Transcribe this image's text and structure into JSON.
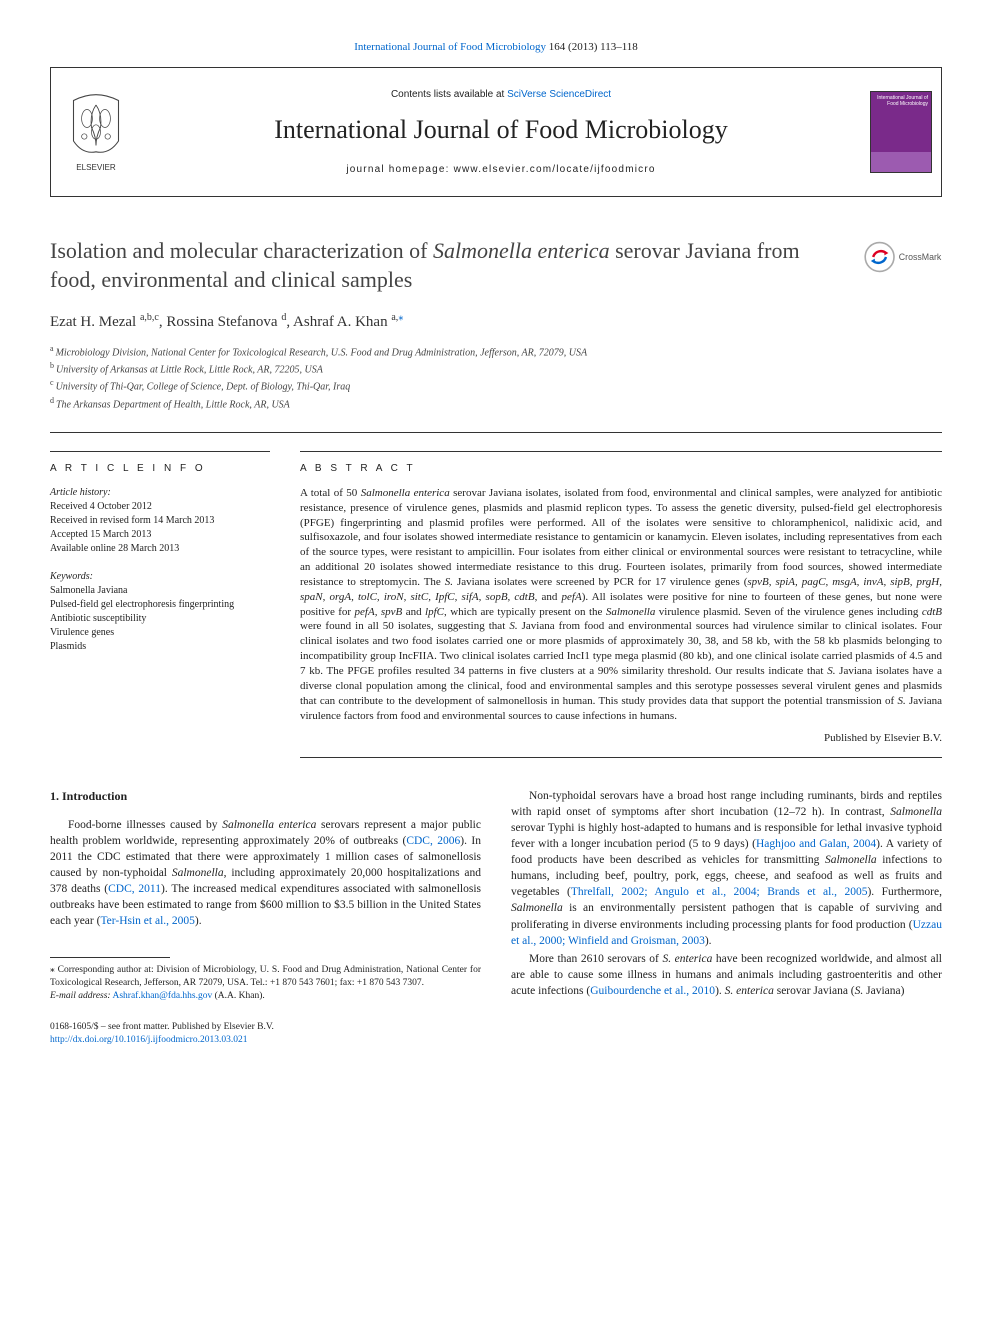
{
  "top_link": {
    "journal": "International Journal of Food Microbiology",
    "cite": "164 (2013) 113–118"
  },
  "header": {
    "contents_prefix": "Contents lists available at ",
    "contents_link": "SciVerse ScienceDirect",
    "journal_name": "International Journal of Food Microbiology",
    "homepage_prefix": "journal homepage: ",
    "homepage": "www.elsevier.com/locate/ijfoodmicro",
    "thumb_label": "International Journal of\nFood Microbiology",
    "elsevier_label": "ELSEVIER"
  },
  "crossmark_label": "CrossMark",
  "title": {
    "pre": "Isolation and molecular characterization of ",
    "ital": "Salmonella enterica",
    "post": " serovar Javiana from food, environmental and clinical samples"
  },
  "authors": [
    {
      "name": "Ezat H. Mezal",
      "sup": "a,b,c"
    },
    {
      "name": "Rossina Stefanova",
      "sup": "d"
    },
    {
      "name": "Ashraf A. Khan",
      "sup": "a,",
      "corr": true
    }
  ],
  "affiliations": [
    {
      "sup": "a",
      "text": "Microbiology Division, National Center for Toxicological Research, U.S. Food and Drug Administration, Jefferson, AR, 72079, USA"
    },
    {
      "sup": "b",
      "text": "University of Arkansas at Little Rock, Little Rock, AR, 72205, USA"
    },
    {
      "sup": "c",
      "text": "University of Thi-Qar, College of Science, Dept. of Biology, Thi-Qar, Iraq"
    },
    {
      "sup": "d",
      "text": "The Arkansas Department of Health, Little Rock, AR, USA"
    }
  ],
  "info": {
    "heading": "A R T I C L E   I N F O",
    "history_label": "Article history:",
    "history": [
      "Received 4 October 2012",
      "Received in revised form 14 March 2013",
      "Accepted 15 March 2013",
      "Available online 28 March 2013"
    ],
    "keywords_label": "Keywords:",
    "keywords": [
      "Salmonella Javiana",
      "Pulsed-field gel electrophoresis fingerprinting",
      "Antibiotic susceptibility",
      "Virulence genes",
      "Plasmids"
    ]
  },
  "abstract": {
    "heading": "A B S T R A C T",
    "text_parts": [
      {
        "t": "A total of 50 "
      },
      {
        "t": "Salmonella enterica",
        "i": true
      },
      {
        "t": " serovar Javiana isolates, isolated from food, environmental and clinical samples, were analyzed for antibiotic resistance, presence of virulence genes, plasmids and plasmid replicon types. To assess the genetic diversity, pulsed-field gel electrophoresis (PFGE) fingerprinting and plasmid profiles were performed. All of the isolates were sensitive to chloramphenicol, nalidixic acid, and sulfisoxazole, and four isolates showed intermediate resistance to gentamicin or kanamycin. Eleven isolates, including representatives from each of the source types, were resistant to ampicillin. Four isolates from either clinical or environmental sources were resistant to tetracycline, while an additional 20 isolates showed intermediate resistance to this drug. Fourteen isolates, primarily from food sources, showed intermediate resistance to streptomycin. The "
      },
      {
        "t": "S.",
        "i": true
      },
      {
        "t": " Javiana isolates were screened by PCR for 17 virulence genes ("
      },
      {
        "t": "spvB, spiA, pagC, msgA, invA, sipB, prgH, spaN, orgA, tolC, iroN, sitC, IpfC, sifA, sopB, cdtB",
        "i": true
      },
      {
        "t": ", and "
      },
      {
        "t": "pefA",
        "i": true
      },
      {
        "t": "). All isolates were positive for nine to fourteen of these genes, but none were positive for "
      },
      {
        "t": "pefA, spvB",
        "i": true
      },
      {
        "t": " and "
      },
      {
        "t": "lpfC",
        "i": true
      },
      {
        "t": ", which are typically present on the "
      },
      {
        "t": "Salmonella",
        "i": true
      },
      {
        "t": " virulence plasmid. Seven of the virulence genes including "
      },
      {
        "t": "cdtB",
        "i": true
      },
      {
        "t": " were found in all 50 isolates, suggesting that "
      },
      {
        "t": "S.",
        "i": true
      },
      {
        "t": " Javiana from food and environmental sources had virulence similar to clinical isolates. Four clinical isolates and two food isolates carried one or more plasmids of approximately 30, 38, and 58 kb, with the 58 kb plasmids belonging to incompatibility group IncFIIA. Two clinical isolates carried IncI1 type mega plasmid (80 kb), and one clinical isolate carried plasmids of 4.5 and 7 kb. The PFGE profiles resulted 34 patterns in five clusters at a 90% similarity threshold. Our results indicate that "
      },
      {
        "t": "S.",
        "i": true
      },
      {
        "t": " Javiana isolates have a diverse clonal population among the clinical, food and environmental samples and this serotype possesses several virulent genes and plasmids that can contribute to the development of salmonellosis in human. This study provides data that support the potential transmission of "
      },
      {
        "t": "S.",
        "i": true
      },
      {
        "t": " Javiana virulence factors from food and environmental sources to cause infections in humans."
      }
    ],
    "publisher": "Published by Elsevier B.V."
  },
  "intro": {
    "heading": "1. Introduction",
    "left_paras": [
      [
        {
          "t": "Food-borne illnesses caused by "
        },
        {
          "t": "Salmonella enterica",
          "i": true
        },
        {
          "t": " serovars represent a major public health problem worldwide, representing approximately 20% of outbreaks ("
        },
        {
          "t": "CDC, 2006",
          "l": true
        },
        {
          "t": "). In 2011 the CDC estimated that there were approximately 1 million cases of salmonellosis caused by non-typhoidal "
        },
        {
          "t": "Salmonella",
          "i": true
        },
        {
          "t": ", including approximately 20,000 hospitalizations and 378 deaths ("
        },
        {
          "t": "CDC, 2011",
          "l": true
        },
        {
          "t": "). The increased medical expenditures associated with salmonellosis outbreaks have been estimated to range from $600 million to $3.5 billion in the United States each year ("
        },
        {
          "t": "Ter-Hsin et al., 2005",
          "l": true
        },
        {
          "t": ")."
        }
      ]
    ],
    "right_paras": [
      [
        {
          "t": "Non-typhoidal serovars have a broad host range including ruminants, birds and reptiles with rapid onset of symptoms after short incubation (12–72 h). In contrast, "
        },
        {
          "t": "Salmonella",
          "i": true
        },
        {
          "t": " serovar Typhi is highly host-adapted to humans and is responsible for lethal invasive typhoid fever with a longer incubation period (5 to 9 days) ("
        },
        {
          "t": "Haghjoo and Galan, 2004",
          "l": true
        },
        {
          "t": "). A variety of food products have been described as vehicles for transmitting "
        },
        {
          "t": "Salmonella",
          "i": true
        },
        {
          "t": " infections to humans, including beef, poultry, pork, eggs, cheese, and seafood as well as fruits and vegetables ("
        },
        {
          "t": "Threlfall, 2002; Angulo et al., 2004; Brands et al., 2005",
          "l": true
        },
        {
          "t": "). Furthermore, "
        },
        {
          "t": "Salmonella",
          "i": true
        },
        {
          "t": " is an environmentally persistent pathogen that is capable of surviving and proliferating in diverse environments including processing plants for food production ("
        },
        {
          "t": "Uzzau et al., 2000; Winfield and Groisman, 2003",
          "l": true
        },
        {
          "t": ")."
        }
      ],
      [
        {
          "t": "More than 2610 serovars of "
        },
        {
          "t": "S. enterica",
          "i": true
        },
        {
          "t": " have been recognized worldwide, and almost all are able to cause some illness in humans and animals including gastroenteritis and other acute infections ("
        },
        {
          "t": "Guibourdenche et al., 2010",
          "l": true
        },
        {
          "t": "). "
        },
        {
          "t": "S. enterica",
          "i": true
        },
        {
          "t": " serovar Javiana ("
        },
        {
          "t": "S.",
          "i": true
        },
        {
          "t": " Javiana)"
        }
      ]
    ]
  },
  "footnotes": {
    "corr_label": "⁎ Corresponding author at: Division of Microbiology, U. S. Food and Drug Administration, National Center for Toxicological Research, Jefferson, AR 72079, USA. Tel.: +1 870 543 7601; fax: +1 870 543 7307.",
    "email_label": "E-mail address:",
    "email": "Ashraf.khan@fda.hhs.gov",
    "email_who": "(A.A. Khan)."
  },
  "bottom": {
    "issn": "0168-1605/$ – see front matter. Published by Elsevier B.V.",
    "doi": "http://dx.doi.org/10.1016/j.ijfoodmicro.2013.03.021"
  },
  "colors": {
    "link": "#0066cc",
    "text": "#222",
    "thumb_bg": "#7a2a8a",
    "elsevier_orange": "#e67817"
  }
}
